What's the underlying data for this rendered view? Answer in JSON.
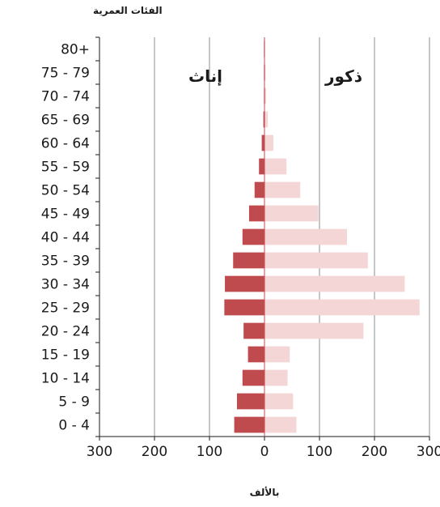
{
  "chart_data": {
    "type": "bar",
    "orientation": "horizontal",
    "title": "",
    "ylabel": "الفئات العمرية",
    "xlabel": "بالألف",
    "categories": [
      "0 - 4",
      "5 - 9",
      "10 - 14",
      "15 - 19",
      "20 - 24",
      "25 - 29",
      "30 - 34",
      "35 - 39",
      "40 - 44",
      "45 - 49",
      "50 - 54",
      "55 - 59",
      "60 - 64",
      "65 - 69",
      "70 - 74",
      "75 - 79",
      "80+"
    ],
    "series": [
      {
        "name": "إناث",
        "side": "left",
        "color": "#bf4b4f",
        "values": [
          55,
          50,
          40,
          30,
          38,
          73,
          72,
          57,
          40,
          28,
          18,
          10,
          5,
          2,
          1,
          1,
          1
        ]
      },
      {
        "name": "ذكور",
        "side": "right",
        "color": "#f4d6d7",
        "values": [
          58,
          52,
          42,
          46,
          180,
          282,
          255,
          188,
          150,
          98,
          65,
          40,
          16,
          6,
          3,
          2,
          1
        ]
      }
    ],
    "xlim": [
      -300,
      300
    ],
    "x_ticks": [
      -300,
      -200,
      -100,
      0,
      100,
      200,
      300
    ],
    "x_tick_labels": [
      "300",
      "200",
      "100",
      "0",
      "100",
      "200",
      "300"
    ],
    "grid": "vertical"
  }
}
